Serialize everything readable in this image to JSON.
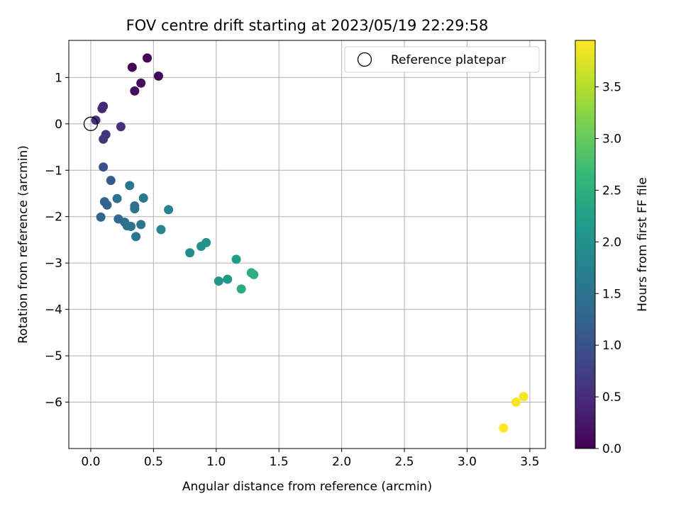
{
  "chart_data": {
    "type": "scatter",
    "title": "FOV centre drift starting at 2023/05/19 22:29:58",
    "xlabel": "Angular distance from reference (arcmin)",
    "ylabel": "Rotation from reference (arcmin)",
    "xlim": [
      -0.175,
      3.625
    ],
    "ylim": [
      -7.0,
      1.8
    ],
    "xticks": [
      0.0,
      0.5,
      1.0,
      1.5,
      2.0,
      2.5,
      3.0,
      3.5
    ],
    "xtick_labels": [
      "0.0",
      "0.5",
      "1.0",
      "1.5",
      "2.0",
      "2.5",
      "3.0",
      "3.5"
    ],
    "yticks": [
      -6,
      -5,
      -4,
      -3,
      -2,
      -1,
      0,
      1
    ],
    "ytick_labels": [
      "−6",
      "−5",
      "−4",
      "−3",
      "−2",
      "−1",
      "0",
      "1"
    ],
    "grid": true,
    "legend": {
      "placement": "top-right",
      "entries": [
        "Reference platepar"
      ]
    },
    "reference_point": {
      "x": 0.0,
      "y": 0.0,
      "label": "Reference platepar"
    },
    "colorbar": {
      "label": "Hours from first FF file",
      "range": [
        0.0,
        3.95
      ],
      "ticks": [
        0.0,
        0.5,
        1.0,
        1.5,
        2.0,
        2.5,
        3.0,
        3.5
      ],
      "tick_labels": [
        "0.0",
        "0.5",
        "1.0",
        "1.5",
        "2.0",
        "2.5",
        "3.0",
        "3.5"
      ],
      "colormap": [
        "#440154",
        "#482878",
        "#3e4a89",
        "#31688e",
        "#26828e",
        "#1f9e89",
        "#35b779",
        "#6ece58",
        "#b5de2b",
        "#fde725"
      ]
    },
    "points": [
      {
        "x": 0.45,
        "y": 1.42,
        "c": 0.02
      },
      {
        "x": 0.33,
        "y": 1.22,
        "c": 0.05
      },
      {
        "x": 0.54,
        "y": 1.03,
        "c": 0.08
      },
      {
        "x": 0.4,
        "y": 0.88,
        "c": 0.12
      },
      {
        "x": 0.35,
        "y": 0.71,
        "c": 0.15
      },
      {
        "x": 0.1,
        "y": 0.38,
        "c": 0.42
      },
      {
        "x": 0.09,
        "y": 0.33,
        "c": 0.45
      },
      {
        "x": 0.04,
        "y": 0.08,
        "c": 0.5
      },
      {
        "x": 0.24,
        "y": -0.06,
        "c": 0.55
      },
      {
        "x": 0.12,
        "y": -0.23,
        "c": 0.6
      },
      {
        "x": 0.1,
        "y": -0.33,
        "c": 0.65
      },
      {
        "x": 0.1,
        "y": -0.93,
        "c": 0.95
      },
      {
        "x": 0.16,
        "y": -1.22,
        "c": 1.1
      },
      {
        "x": 0.31,
        "y": -1.33,
        "c": 1.55
      },
      {
        "x": 0.42,
        "y": -1.6,
        "c": 1.58
      },
      {
        "x": 0.21,
        "y": -1.61,
        "c": 1.5
      },
      {
        "x": 0.11,
        "y": -1.68,
        "c": 1.2
      },
      {
        "x": 0.13,
        "y": -1.75,
        "c": 1.25
      },
      {
        "x": 0.35,
        "y": -1.77,
        "c": 1.45
      },
      {
        "x": 0.35,
        "y": -1.83,
        "c": 1.5
      },
      {
        "x": 0.62,
        "y": -1.85,
        "c": 1.75
      },
      {
        "x": 0.08,
        "y": -2.01,
        "c": 1.3
      },
      {
        "x": 0.22,
        "y": -2.05,
        "c": 1.35
      },
      {
        "x": 0.27,
        "y": -2.12,
        "c": 1.4
      },
      {
        "x": 0.29,
        "y": -2.2,
        "c": 1.45
      },
      {
        "x": 0.32,
        "y": -2.21,
        "c": 1.5
      },
      {
        "x": 0.4,
        "y": -2.17,
        "c": 1.55
      },
      {
        "x": 0.56,
        "y": -2.28,
        "c": 1.8
      },
      {
        "x": 0.36,
        "y": -2.43,
        "c": 1.55
      },
      {
        "x": 0.92,
        "y": -2.56,
        "c": 2.0
      },
      {
        "x": 0.88,
        "y": -2.64,
        "c": 1.98
      },
      {
        "x": 0.79,
        "y": -2.78,
        "c": 1.95
      },
      {
        "x": 1.16,
        "y": -2.92,
        "c": 2.2
      },
      {
        "x": 1.28,
        "y": -3.21,
        "c": 2.45
      },
      {
        "x": 1.3,
        "y": -3.25,
        "c": 2.5
      },
      {
        "x": 1.09,
        "y": -3.35,
        "c": 2.1
      },
      {
        "x": 1.02,
        "y": -3.39,
        "c": 2.05
      },
      {
        "x": 1.2,
        "y": -3.56,
        "c": 2.45
      },
      {
        "x": 3.45,
        "y": -5.88,
        "c": 3.9
      },
      {
        "x": 3.39,
        "y": -6.0,
        "c": 3.92
      },
      {
        "x": 3.29,
        "y": -6.56,
        "c": 3.95
      }
    ]
  }
}
